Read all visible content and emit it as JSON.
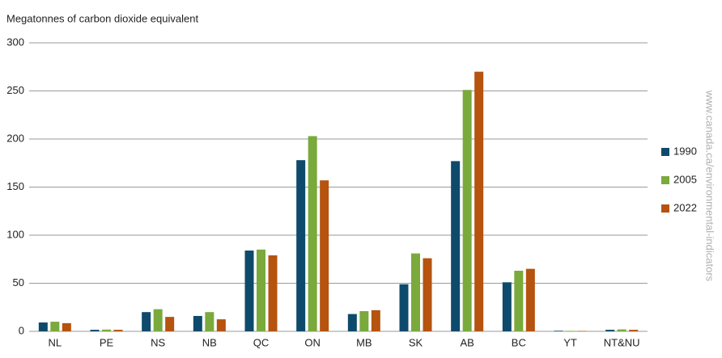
{
  "chart_data": {
    "type": "bar",
    "y_label": "Megatonnes of carbon dioxide equivalent",
    "source": "www.canada.ca/environmental-indicators",
    "categories": [
      "NL",
      "PE",
      "NS",
      "NB",
      "QC",
      "ON",
      "MB",
      "SK",
      "AB",
      "BC",
      "YT",
      "NT&NU"
    ],
    "series": [
      {
        "name": "1990",
        "color": "#0e4a6b",
        "values": [
          9.2,
          1.6,
          20,
          16,
          84,
          178,
          18,
          49,
          177,
          51,
          0.6,
          1.6
        ]
      },
      {
        "name": "2005",
        "color": "#7aa93c",
        "values": [
          10,
          1.8,
          23,
          20,
          85,
          203,
          21,
          81,
          251,
          63,
          0.5,
          2
        ]
      },
      {
        "name": "2022",
        "color": "#b5530f",
        "values": [
          8.5,
          1.6,
          15,
          12.5,
          79,
          157,
          22,
          76,
          270,
          65,
          0.4,
          1.6
        ]
      }
    ],
    "ylim": [
      0,
      300
    ],
    "yticks": [
      0,
      50,
      100,
      150,
      200,
      250,
      300
    ],
    "grid": true,
    "legend": "right"
  }
}
